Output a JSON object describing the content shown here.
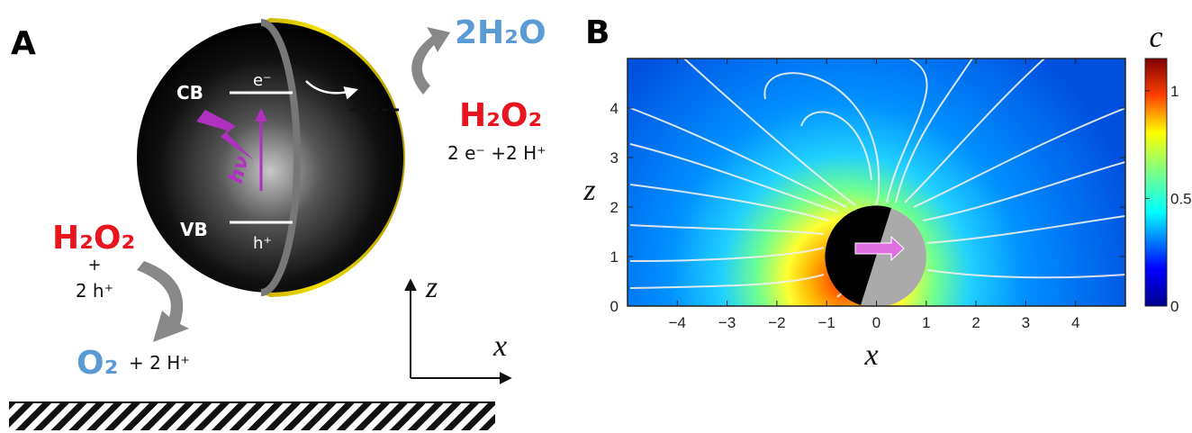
{
  "panel_a": {
    "label": "A",
    "cb": "CB",
    "vb": "VB",
    "electron": "e⁻",
    "hole": "h⁺",
    "photon": "hν",
    "top_product": "2H₂O",
    "top_reactant": "H₂O₂",
    "top_cofactor": "2 e⁻ +2 H⁺",
    "left_reactant": "H₂O₂",
    "left_plus": "+",
    "left_cofactor": "2 h⁺",
    "bottom_product": "O₂",
    "bottom_cofactor": "+ 2 H⁺",
    "axis_z": "z",
    "axis_x": "x"
  },
  "panel_b": {
    "label": "B",
    "xlabel": "x",
    "ylabel": "z",
    "colorbar_label": "c",
    "xlim": [
      -5,
      5
    ],
    "ylim": [
      0,
      5
    ],
    "clim": [
      0,
      1.15
    ],
    "xticks": [
      {
        "value": -4,
        "label": "−4"
      },
      {
        "value": -3,
        "label": "−3"
      },
      {
        "value": -2,
        "label": "−2"
      },
      {
        "value": -1,
        "label": "−1"
      },
      0,
      1,
      2,
      3,
      4
    ],
    "yticks": [
      0,
      1,
      2,
      3,
      4
    ],
    "cticks": [
      0,
      0.5,
      1
    ]
  }
}
